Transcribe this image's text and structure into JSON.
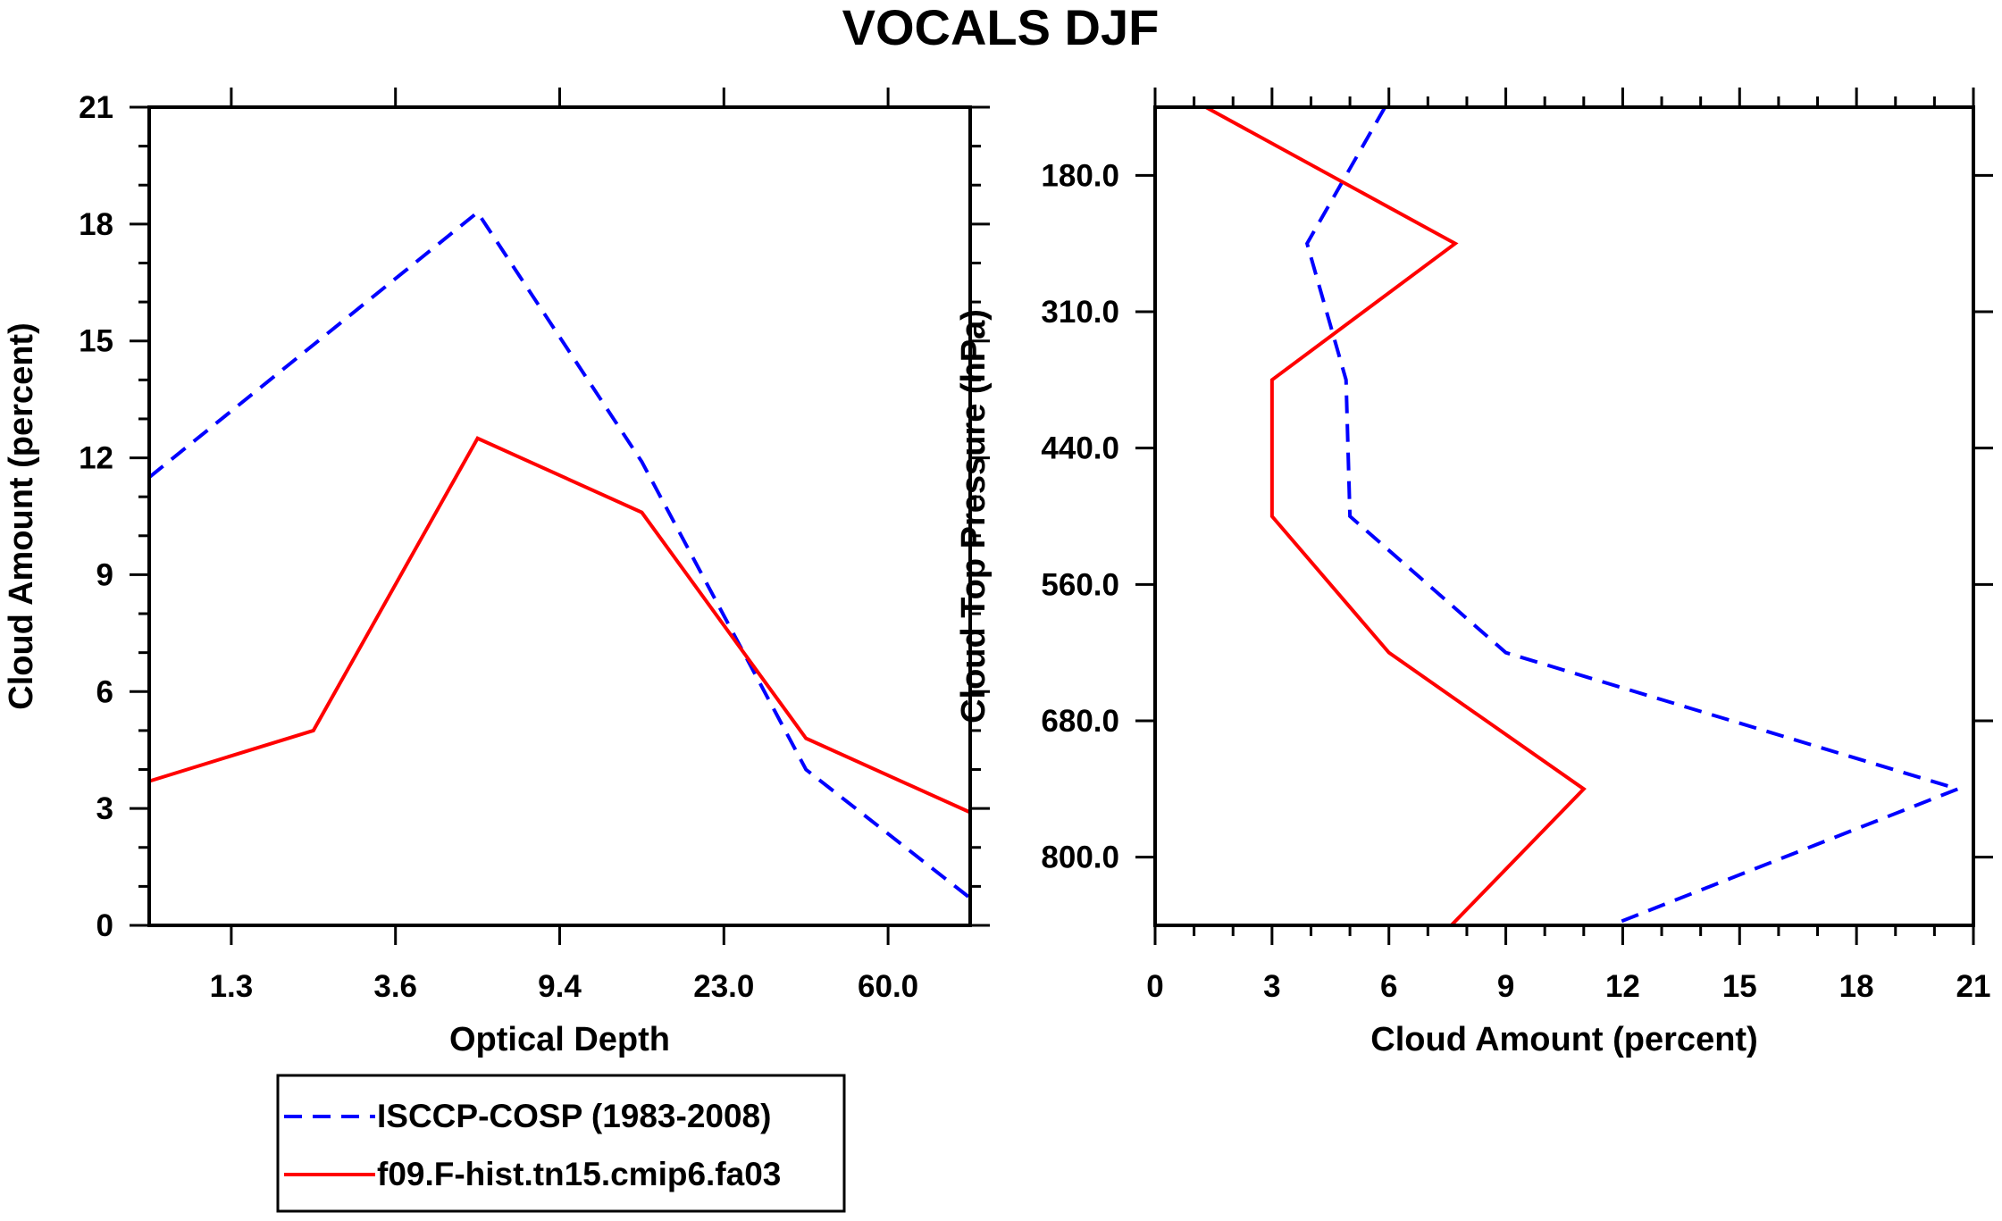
{
  "title": "VOCALS DJF",
  "colors": {
    "obs": "#0000ff",
    "model": "#ff0000",
    "axis": "#000000"
  },
  "legend": {
    "placement": "bottom-left",
    "items": [
      {
        "label": "ISCCP-COSP (1983-2008)",
        "color": "#0000ff",
        "style": "dashed"
      },
      {
        "label": "f09.F-hist.tn15.cmip6.fa03",
        "color": "#ff0000",
        "style": "solid"
      }
    ]
  },
  "chart_data": [
    {
      "type": "line",
      "xlabel": "Optical Depth",
      "ylabel": "Cloud Amount (percent)",
      "x_index": [
        0,
        1,
        2,
        3,
        4,
        5
      ],
      "x_tick_positions": [
        0.5,
        1.5,
        2.5,
        3.5,
        4.5
      ],
      "x_tick_labels": [
        "1.3",
        "3.6",
        "9.4",
        "23.0",
        "60.0"
      ],
      "ylim": [
        0,
        21
      ],
      "y_ticks": [
        0,
        3,
        6,
        9,
        12,
        15,
        18,
        21
      ],
      "y_tick_labels": [
        "0",
        "3",
        "6",
        "9",
        "12",
        "15",
        "18",
        "21"
      ],
      "series": [
        {
          "name": "ISCCP-COSP (1983-2008)",
          "values": [
            11.5,
            14.9,
            18.3,
            11.9,
            4.0,
            0.7
          ]
        },
        {
          "name": "f09.F-hist.tn15.cmip6.fa03",
          "values": [
            3.7,
            5.0,
            12.5,
            10.6,
            4.8,
            2.9
          ]
        }
      ]
    },
    {
      "type": "line",
      "orientation": "vertical",
      "xlabel": "Cloud Amount (percent)",
      "ylabel": "Cloud Top Pressure (hPa)",
      "xlim": [
        0,
        21
      ],
      "x_ticks": [
        0,
        3,
        6,
        9,
        12,
        15,
        18,
        21
      ],
      "x_tick_labels": [
        "0",
        "3",
        "6",
        "9",
        "12",
        "15",
        "18",
        "21"
      ],
      "y_index": [
        0,
        1,
        2,
        3,
        4,
        5,
        6
      ],
      "y_tick_positions": [
        0.5,
        1.5,
        2.5,
        3.5,
        4.5,
        5.5
      ],
      "y_tick_labels": [
        "180.0",
        "310.0",
        "440.0",
        "560.0",
        "680.0",
        "800.0"
      ],
      "series": [
        {
          "name": "ISCCP-COSP (1983-2008)",
          "values": [
            5.9,
            3.9,
            4.9,
            5.0,
            9.0,
            20.6,
            11.7
          ]
        },
        {
          "name": "f09.F-hist.tn15.cmip6.fa03",
          "values": [
            1.3,
            7.7,
            3.0,
            3.0,
            6.0,
            11.0,
            7.6
          ]
        }
      ]
    }
  ]
}
